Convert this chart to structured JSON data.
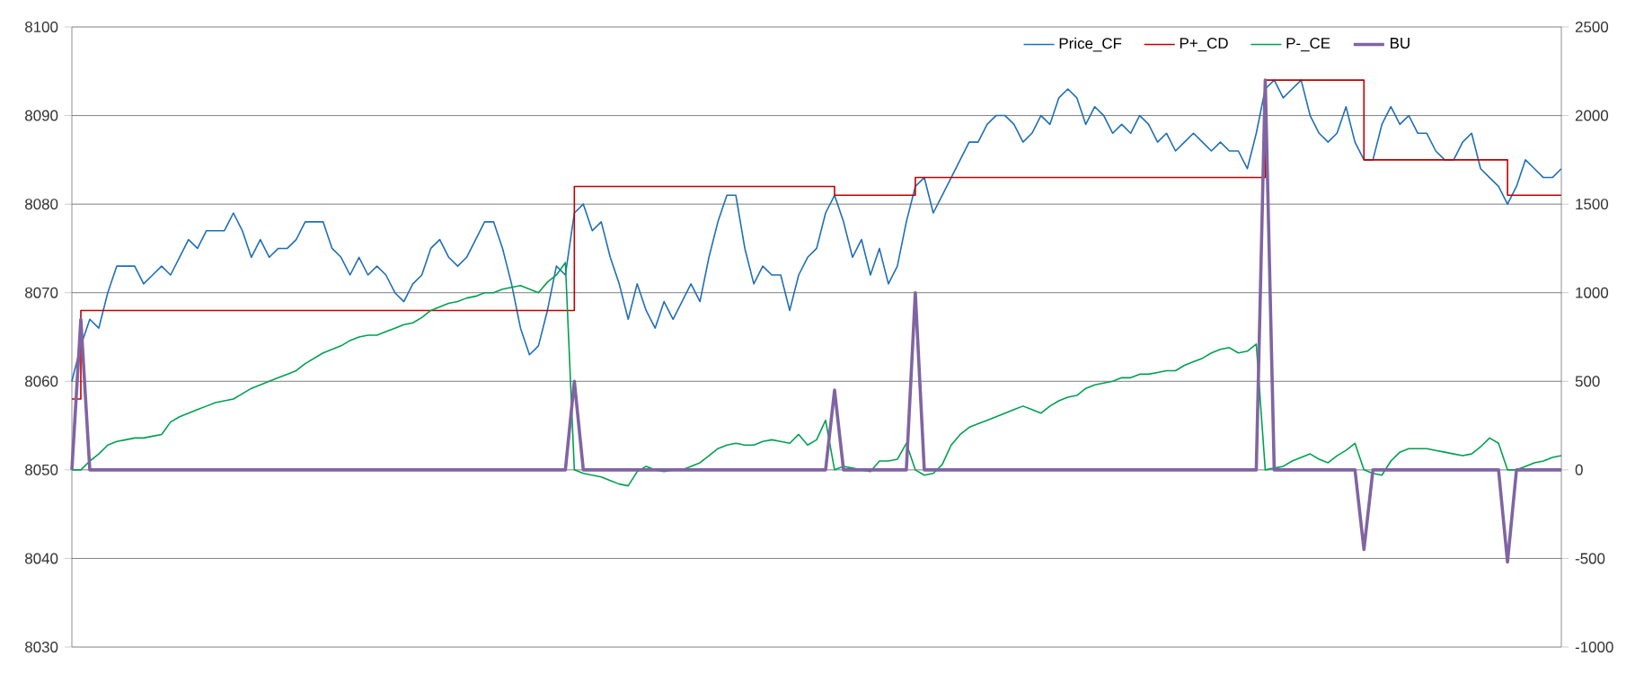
{
  "chart_data": {
    "type": "line",
    "categories": [
      null,
      null,
      null,
      null,
      null,
      null,
      null,
      null,
      null,
      null,
      null,
      null,
      null,
      null,
      null,
      null,
      null,
      null,
      null,
      null,
      null,
      null,
      null,
      null,
      null,
      null,
      null,
      null,
      null,
      null,
      null,
      null,
      null,
      null,
      null,
      null,
      null,
      null,
      null,
      null,
      null,
      null,
      null,
      null,
      null,
      null,
      null,
      null,
      null,
      null,
      null,
      null,
      null,
      null,
      null,
      null,
      null,
      null,
      null,
      null,
      null,
      null,
      null,
      null,
      null,
      null,
      null,
      null,
      null,
      null,
      null,
      null,
      null,
      null,
      null,
      null,
      null,
      null,
      null,
      null,
      null,
      null,
      null,
      null,
      null,
      null,
      null,
      null,
      null,
      null,
      null,
      null,
      null,
      null,
      null,
      null,
      null,
      null,
      null,
      null,
      null,
      null,
      null,
      null,
      null,
      null,
      null,
      null,
      null,
      null,
      null,
      null,
      null,
      null,
      null,
      null,
      null,
      null,
      null,
      null,
      null,
      null,
      null,
      null,
      null,
      null,
      null,
      null,
      null,
      null,
      null,
      null,
      null,
      null,
      null,
      null,
      null,
      null,
      null,
      null,
      null,
      null,
      null,
      null,
      null,
      null,
      null,
      null,
      null,
      null,
      null,
      null,
      null,
      null,
      null,
      null,
      null,
      null,
      null,
      null,
      null,
      null,
      null,
      null,
      null,
      null,
      null
    ],
    "series": [
      {
        "name": "Price_CF",
        "color": "#1f6fb5",
        "values": [
          8060,
          8064,
          8067,
          8066,
          8070,
          8073,
          8073,
          8073,
          8071,
          8072,
          8073,
          8072,
          8074,
          8076,
          8075,
          8077,
          8077,
          8077,
          8079,
          8077,
          8074,
          8076,
          8074,
          8075,
          8075,
          8076,
          8078,
          8078,
          8078,
          8075,
          8074,
          8072,
          8074,
          8072,
          8073,
          8072,
          8070,
          8069,
          8071,
          8072,
          8075,
          8076,
          8074,
          8073,
          8074,
          8076,
          8078,
          8078,
          8075,
          8071,
          8066,
          8063,
          8064,
          8068,
          8073,
          8072,
          8079,
          8080,
          8077,
          8078,
          8074,
          8071,
          8067,
          8071,
          8068,
          8066,
          8069,
          8067,
          8069,
          8071,
          8069,
          8074,
          8078,
          8081,
          8081,
          8075,
          8071,
          8073,
          8072,
          8072,
          8068,
          8072,
          8074,
          8075,
          8079,
          8081,
          8078,
          8074,
          8076,
          8072,
          8075,
          8071,
          8073,
          8078,
          8082,
          8083,
          8079,
          8081,
          8083,
          8085,
          8087,
          8087,
          8089,
          8090,
          8090,
          8089,
          8087,
          8088,
          8090,
          8089,
          8092,
          8093,
          8092,
          8089,
          8091,
          8090,
          8088,
          8089,
          8088,
          8090,
          8089,
          8087,
          8088,
          8086,
          8087,
          8088,
          8087,
          8086,
          8087,
          8086,
          8086,
          8084,
          8088,
          8093,
          8094,
          8092,
          8093,
          8094,
          8090,
          8088,
          8087,
          8088,
          8091,
          8087,
          8085,
          8085,
          8089,
          8091,
          8089,
          8090,
          8088,
          8088,
          8086,
          8085,
          8085,
          8087,
          8088,
          8084,
          8083,
          8082,
          8080,
          8082,
          8085,
          8084,
          8083,
          8083,
          8084
        ]
      },
      {
        "name": "P+_CD",
        "color": "#c00000",
        "type": "step",
        "values": [
          8058,
          8068,
          8068,
          8068,
          8068,
          8068,
          8068,
          8068,
          8068,
          8068,
          8068,
          8068,
          8068,
          8068,
          8068,
          8068,
          8068,
          8068,
          8068,
          8068,
          8068,
          8068,
          8068,
          8068,
          8068,
          8068,
          8068,
          8068,
          8068,
          8068,
          8068,
          8068,
          8068,
          8068,
          8068,
          8068,
          8068,
          8068,
          8068,
          8068,
          8068,
          8068,
          8068,
          8068,
          8068,
          8068,
          8068,
          8068,
          8068,
          8068,
          8068,
          8068,
          8068,
          8068,
          8068,
          8068,
          8082,
          8082,
          8082,
          8082,
          8082,
          8082,
          8082,
          8082,
          8082,
          8082,
          8082,
          8082,
          8082,
          8082,
          8082,
          8082,
          8082,
          8082,
          8082,
          8082,
          8082,
          8082,
          8082,
          8082,
          8082,
          8082,
          8082,
          8082,
          8082,
          8081,
          8081,
          8081,
          8081,
          8081,
          8081,
          8081,
          8081,
          8081,
          8083,
          8083,
          8083,
          8083,
          8083,
          8083,
          8083,
          8083,
          8083,
          8083,
          8083,
          8083,
          8083,
          8083,
          8083,
          8083,
          8083,
          8083,
          8083,
          8083,
          8083,
          8083,
          8083,
          8083,
          8083,
          8083,
          8083,
          8083,
          8083,
          8083,
          8083,
          8083,
          8083,
          8083,
          8083,
          8083,
          8083,
          8083,
          8083,
          8094,
          8094,
          8094,
          8094,
          8094,
          8094,
          8094,
          8094,
          8094,
          8094,
          8094,
          8085,
          8085,
          8085,
          8085,
          8085,
          8085,
          8085,
          8085,
          8085,
          8085,
          8085,
          8085,
          8085,
          8085,
          8085,
          8085,
          8081,
          8081,
          8081,
          8081,
          8081,
          8081,
          8081
        ]
      },
      {
        "name": "P-_CE",
        "color": "#00a050",
        "axis": "y2",
        "values": [
          0,
          0,
          50,
          90,
          140,
          160,
          170,
          180,
          180,
          190,
          200,
          270,
          300,
          320,
          340,
          360,
          380,
          390,
          400,
          430,
          460,
          480,
          500,
          520,
          540,
          560,
          600,
          630,
          660,
          680,
          700,
          730,
          750,
          760,
          760,
          780,
          800,
          820,
          830,
          860,
          900,
          920,
          940,
          950,
          970,
          980,
          1000,
          1000,
          1020,
          1030,
          1040,
          1020,
          1000,
          1060,
          1100,
          1170,
          0,
          -20,
          -30,
          -40,
          -60,
          -80,
          -90,
          -10,
          20,
          0,
          -10,
          0,
          0,
          20,
          40,
          80,
          120,
          140,
          150,
          140,
          140,
          160,
          170,
          160,
          150,
          200,
          140,
          170,
          280,
          0,
          20,
          10,
          0,
          -10,
          50,
          50,
          60,
          150,
          0,
          -30,
          -20,
          30,
          140,
          200,
          240,
          260,
          280,
          300,
          320,
          340,
          360,
          340,
          320,
          360,
          390,
          410,
          420,
          460,
          480,
          490,
          500,
          520,
          520,
          540,
          540,
          550,
          560,
          560,
          590,
          610,
          630,
          660,
          680,
          690,
          660,
          670,
          710,
          0,
          10,
          20,
          50,
          70,
          90,
          60,
          40,
          80,
          110,
          150,
          0,
          -20,
          -30,
          50,
          100,
          120,
          120,
          120,
          110,
          100,
          90,
          80,
          90,
          130,
          180,
          150,
          0,
          0,
          20,
          40,
          50,
          70,
          80
        ]
      },
      {
        "name": "BU",
        "color": "#8064a2",
        "axis": "y2",
        "values": [
          0,
          850,
          0,
          0,
          0,
          0,
          0,
          0,
          0,
          0,
          0,
          0,
          0,
          0,
          0,
          0,
          0,
          0,
          0,
          0,
          0,
          0,
          0,
          0,
          0,
          0,
          0,
          0,
          0,
          0,
          0,
          0,
          0,
          0,
          0,
          0,
          0,
          0,
          0,
          0,
          0,
          0,
          0,
          0,
          0,
          0,
          0,
          0,
          0,
          0,
          0,
          0,
          0,
          0,
          0,
          0,
          500,
          0,
          0,
          0,
          0,
          0,
          0,
          0,
          0,
          0,
          0,
          0,
          0,
          0,
          0,
          0,
          0,
          0,
          0,
          0,
          0,
          0,
          0,
          0,
          0,
          0,
          0,
          0,
          0,
          450,
          0,
          0,
          0,
          0,
          0,
          0,
          0,
          0,
          1000,
          0,
          0,
          0,
          0,
          0,
          0,
          0,
          0,
          0,
          0,
          0,
          0,
          0,
          0,
          0,
          0,
          0,
          0,
          0,
          0,
          0,
          0,
          0,
          0,
          0,
          0,
          0,
          0,
          0,
          0,
          0,
          0,
          0,
          0,
          0,
          0,
          0,
          0,
          2200,
          0,
          0,
          0,
          0,
          0,
          0,
          0,
          0,
          0,
          0,
          -450,
          0,
          0,
          0,
          0,
          0,
          0,
          0,
          0,
          0,
          0,
          0,
          0,
          0,
          0,
          0,
          -520,
          0,
          0,
          0,
          0,
          0,
          0
        ]
      }
    ],
    "ylim": [
      8030,
      8100
    ],
    "yticks": [
      8030,
      8040,
      8050,
      8060,
      8070,
      8080,
      8090,
      8100
    ],
    "y2lim": [
      -1000,
      2500
    ],
    "y2ticks": [
      -1000,
      -500,
      0,
      500,
      1000,
      1500,
      2000,
      2500
    ],
    "grid": "y",
    "legend": "top right"
  }
}
